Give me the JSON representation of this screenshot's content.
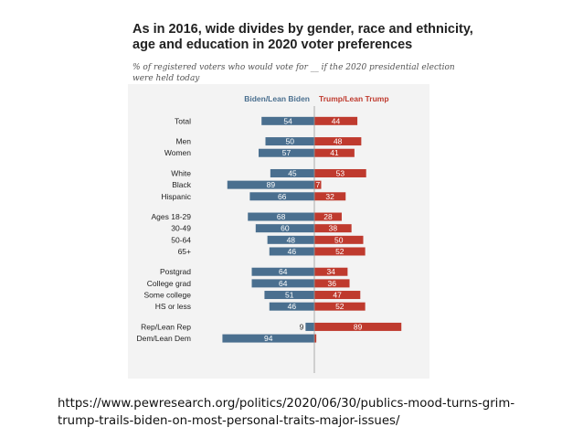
{
  "chart_data": {
    "type": "bar",
    "title": "As in 2016, wide divides by gender, race and ethnicity, age and education in 2020 voter preferences",
    "subtitle": "% of registered voters who would vote for __ if the 2020 presidential election were held today",
    "categories": [
      "Total",
      "Men",
      "Women",
      "White",
      "Black",
      "Hispanic",
      "Ages 18-29",
      "30-49",
      "50-64",
      "65+",
      "Postgrad",
      "College grad",
      "Some college",
      "HS or less",
      "Rep/Lean Rep",
      "Dem/Lean Dem"
    ],
    "groups": [
      [
        0
      ],
      [
        1,
        2
      ],
      [
        3,
        4,
        5
      ],
      [
        6,
        7,
        8,
        9
      ],
      [
        10,
        11,
        12,
        13
      ],
      [
        14,
        15
      ]
    ],
    "series": [
      {
        "name": "Biden/Lean Biden",
        "color": "#4a6f8f",
        "values": [
          54,
          50,
          57,
          45,
          89,
          66,
          68,
          60,
          48,
          46,
          64,
          64,
          51,
          46,
          9,
          94
        ]
      },
      {
        "name": "Trump/Lean Trump",
        "color": "#bf3a2e",
        "values": [
          44,
          48,
          41,
          53,
          7,
          32,
          28,
          38,
          50,
          52,
          34,
          36,
          47,
          52,
          89,
          2
        ]
      }
    ],
    "xlim": [
      0,
      100
    ]
  },
  "labels": {
    "title": "As in 2016, wide divides by gender, race and ethnicity, age and education in 2020 voter preferences",
    "subtitle": "% of registered voters who would vote for __ if the 2020 presidential election were held today"
  },
  "source_text": "https://www.pewresearch.org/politics/2020/06/30/publics-mood-turns-grim-trump-trails-biden-on-most-personal-traits-major-issues/"
}
